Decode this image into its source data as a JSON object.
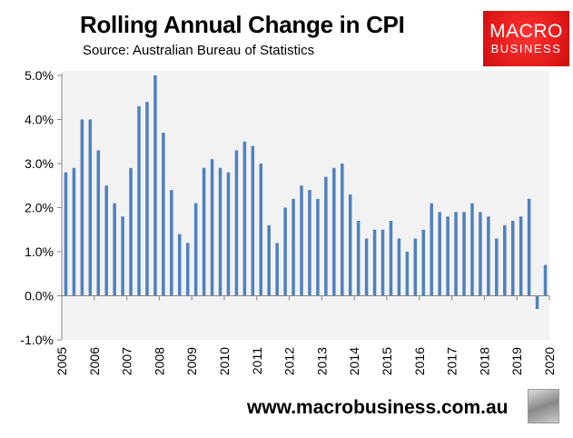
{
  "header": {
    "title": "Rolling Annual Change in CPI",
    "subtitle": "Source: Australian Bureau of Statistics"
  },
  "logo": {
    "line1": "MACRO",
    "line2": "BUSINESS"
  },
  "footer": {
    "url": "www.macrobusiness.com.au"
  },
  "colors": {
    "bar": "#4f81bd",
    "plot_bg": "#f2f2f2",
    "logo_bg": "#e01818"
  },
  "chart_data": {
    "type": "bar",
    "title": "Rolling Annual Change in CPI",
    "subtitle": "Source: Australian Bureau of Statistics",
    "xlabel": "",
    "ylabel": "",
    "x_tick_labels": [
      "2005",
      "2006",
      "2007",
      "2008",
      "2009",
      "2010",
      "2011",
      "2012",
      "2013",
      "2014",
      "2015",
      "2016",
      "2017",
      "2018",
      "2019",
      "2020"
    ],
    "y_tick_labels": [
      "-1.0%",
      "0.0%",
      "1.0%",
      "2.0%",
      "3.0%",
      "4.0%",
      "5.0%"
    ],
    "ylim": [
      -1,
      5
    ],
    "grid": false,
    "legend": "none",
    "frequency": "quarterly",
    "values": [
      2.8,
      2.9,
      4.0,
      4.0,
      3.3,
      2.5,
      2.1,
      1.8,
      2.9,
      4.3,
      4.4,
      5.0,
      3.7,
      2.4,
      1.4,
      1.2,
      2.1,
      2.9,
      3.1,
      2.9,
      2.8,
      3.3,
      3.5,
      3.4,
      3.0,
      1.6,
      1.2,
      2.0,
      2.2,
      2.5,
      2.4,
      2.2,
      2.7,
      2.9,
      3.0,
      2.3,
      1.7,
      1.3,
      1.5,
      1.5,
      1.7,
      1.3,
      1.0,
      1.3,
      1.5,
      2.1,
      1.9,
      1.8,
      1.9,
      1.9,
      2.1,
      1.9,
      1.8,
      1.3,
      1.6,
      1.7,
      1.8,
      2.2,
      -0.3,
      0.7
    ]
  }
}
